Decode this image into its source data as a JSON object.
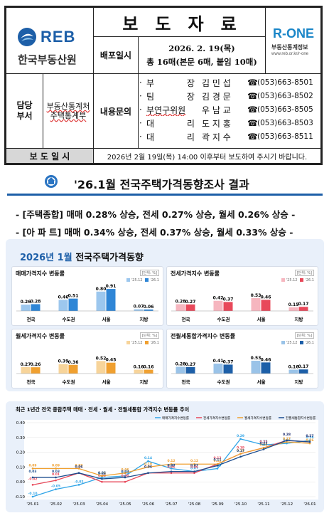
{
  "header": {
    "org_name_en": "REB",
    "org_name_ko": "한국부동산원",
    "title": "보도자료",
    "release_label": "배포일시",
    "release_date": "2026. 2. 19(목)",
    "release_pages": "총 16매(본문 6매, 붙임 10매)",
    "brand": "R-ONE",
    "brand_sub": "부동산통계정보",
    "brand_url": "www.reb.or.kr/r-one",
    "dept_label": "담당\n부서",
    "dept_name": "부동산통계처\n주택통계부",
    "contact_label": "내용문의",
    "contacts": [
      {
        "role": "부            장",
        "name": "김 민 섭",
        "phone": "(053)663-8501"
      },
      {
        "role": "팀            장",
        "name": "김 경 문",
        "phone": "(053)663-8502"
      },
      {
        "role": "부연구위원",
        "name": "우 남 교",
        "phone": "(053)663-8505"
      },
      {
        "role": "대            리",
        "name": "도 지 홍",
        "phone": "(053)663-8503"
      },
      {
        "role": "대            리",
        "name": "곽 지 수",
        "phone": "(053)663-8511"
      }
    ],
    "report_label": "보 도 일 시",
    "report_text": "2026년 2월 19일(목) 14:00 이후부터 보도하여 주시기 바랍니다."
  },
  "headline": "'26.1월 전국주택가격동향조사 결과",
  "bullets": [
    "- [주택종합] 매매 0.28% 상승, 전세 0.27% 상승, 월세 0.26% 상승 -",
    "- [아 파 트] 매매 0.34% 상승, 전세 0.37% 상승, 월세 0.33% 상승 -"
  ],
  "infographic": {
    "title_month": "2026년 1월",
    "title_rest": " 전국주택가격동향",
    "unit": "[단위: %]",
    "legend_prev": "'25.12",
    "legend_curr": "'26.1"
  },
  "chart_data": [
    {
      "type": "bar",
      "title": "매매가격지수 변동률",
      "categories": [
        "전국",
        "수도권",
        "서울",
        "지방"
      ],
      "series": [
        {
          "name": "'25.12",
          "values": [
            0.26,
            0.46,
            0.8,
            0.07
          ]
        },
        {
          "name": "'26.1",
          "values": [
            0.28,
            0.51,
            0.91,
            0.06
          ]
        }
      ],
      "colors": [
        "#9cc7ee",
        "#2f86d6"
      ]
    },
    {
      "type": "bar",
      "title": "전세가격지수 변동률",
      "categories": [
        "전국",
        "수도권",
        "서울",
        "지방"
      ],
      "series": [
        {
          "name": "'25.12",
          "values": [
            0.28,
            0.42,
            0.53,
            0.15
          ]
        },
        {
          "name": "'26.1",
          "values": [
            0.27,
            0.37,
            0.46,
            0.17
          ]
        }
      ],
      "colors": [
        "#f6b6bf",
        "#e8485a"
      ]
    },
    {
      "type": "bar",
      "title": "월세가격지수 변동률",
      "categories": [
        "전국",
        "수도권",
        "서울",
        "지방"
      ],
      "series": [
        {
          "name": "'25.12",
          "values": [
            0.27,
            0.39,
            0.52,
            0.16
          ]
        },
        {
          "name": "'26.1",
          "values": [
            0.26,
            0.36,
            0.45,
            0.16
          ]
        }
      ],
      "colors": [
        "#f7d49a",
        "#f0a030"
      ]
    },
    {
      "type": "bar",
      "title": "전월세통합가격지수 변동률",
      "categories": [
        "전국",
        "수도권",
        "서울",
        "지방"
      ],
      "series": [
        {
          "name": "'25.12",
          "values": [
            0.28,
            0.41,
            0.53,
            0.16
          ]
        },
        {
          "name": "'26.1",
          "values": [
            0.27,
            0.37,
            0.46,
            0.17
          ]
        }
      ],
      "colors": [
        "#9ac3e8",
        "#1d5fa8"
      ]
    },
    {
      "type": "line",
      "title": "최근 1년간 전국 종합주택 매매 · 전세 · 월세 · 전월세통합 가격지수 변동률 추이",
      "x": [
        "'25.01",
        "'25.02",
        "'25.03",
        "'25.04",
        "'25.05",
        "'25.06",
        "'25.07",
        "'25.08",
        "'25.09",
        "'25.10",
        "'25.11",
        "'25.12",
        "'26.01"
      ],
      "ylim": [
        -0.1,
        0.4
      ],
      "yticks": [
        -0.1,
        0.0,
        0.1,
        0.2,
        0.3,
        0.4
      ],
      "series": [
        {
          "name": "매매가격지수변동률",
          "color": "#2fa4e7",
          "values": [
            -0.1,
            -0.05,
            -0.02,
            0.03,
            0.04,
            0.14,
            0.09,
            0.07,
            0.09,
            0.29,
            0.25,
            0.26,
            0.28
          ]
        },
        {
          "name": "전세가격지수변동률",
          "color": "#e8485a",
          "values": [
            -0.02,
            0.01,
            0.06,
            0.0,
            0.0,
            0.06,
            0.06,
            0.06,
            0.12,
            0.19,
            0.23,
            0.28,
            0.27
          ]
        },
        {
          "name": "월세가격지수변동률",
          "color": "#f0a030",
          "values": [
            0.09,
            0.09,
            0.09,
            0.04,
            0.06,
            0.1,
            0.12,
            0.12,
            0.12,
            0.19,
            0.23,
            0.27,
            0.26
          ]
        },
        {
          "name": "전월세통합지수변동률",
          "color": "#1d4e8f",
          "values": [
            0.03,
            0.03,
            0.06,
            0.02,
            0.03,
            0.06,
            0.07,
            0.07,
            0.11,
            0.17,
            0.22,
            0.28,
            0.27
          ]
        }
      ]
    }
  ]
}
